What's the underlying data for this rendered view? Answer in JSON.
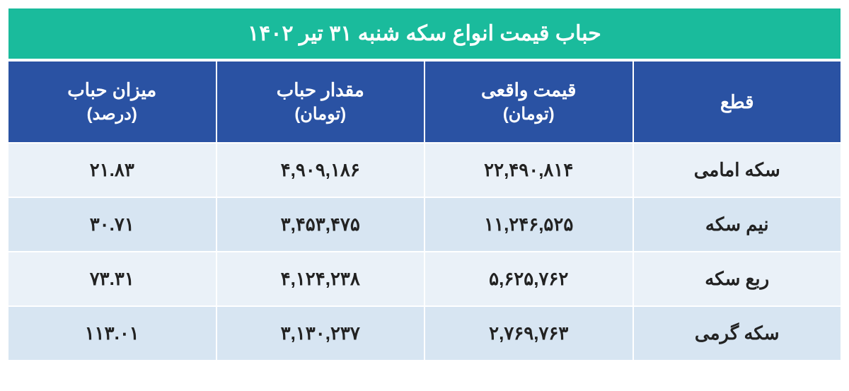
{
  "title": "حباب قیمت انواع سکه شنبه ۳۱ تیر ۱۴۰۲",
  "table": {
    "title_bg": "#1abb9c",
    "header_bg": "#2a52a3",
    "row_odd_bg": "#eaf1f8",
    "row_even_bg": "#d7e5f2",
    "text_color": "#222222",
    "header_text_color": "#ffffff",
    "border_color": "#ffffff",
    "title_fontsize": 30,
    "header_fontsize": 26,
    "cell_fontsize": 26,
    "columns": [
      {
        "line1": "قطع",
        "line2": ""
      },
      {
        "line1": "قیمت واقعی",
        "line2": "(تومان)"
      },
      {
        "line1": "مقدار حباب",
        "line2": "(تومان)"
      },
      {
        "line1": "میزان حباب",
        "line2": "(درصد)"
      }
    ],
    "rows": [
      {
        "name": "سکه امامی",
        "real_price": "۲۲,۴۹۰,۸۱۴",
        "bubble_amount": "۴,۹۰۹,۱۸۶",
        "bubble_pct": "۲۱.۸۳"
      },
      {
        "name": "نیم سکه",
        "real_price": "۱۱,۲۴۶,۵۲۵",
        "bubble_amount": "۳,۴۵۳,۴۷۵",
        "bubble_pct": "۳۰.۷۱"
      },
      {
        "name": "ربع سکه",
        "real_price": "۵,۶۲۵,۷۶۲",
        "bubble_amount": "۴,۱۲۴,۲۳۸",
        "bubble_pct": "۷۳.۳۱"
      },
      {
        "name": "سکه گرمی",
        "real_price": "۲,۷۶۹,۷۶۳",
        "bubble_amount": "۳,۱۳۰,۲۳۷",
        "bubble_pct": "۱۱۳.۰۱"
      }
    ]
  }
}
